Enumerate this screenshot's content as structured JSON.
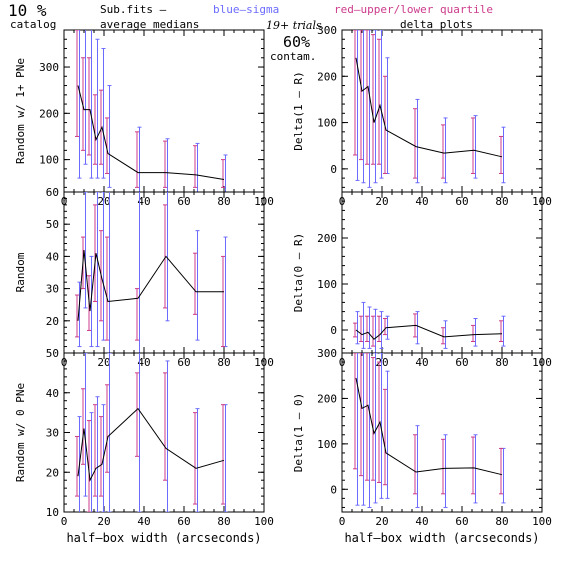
{
  "header": {
    "fraction": "10 %",
    "catalog": "catalog",
    "subfits": "Sub.fits  –",
    "average_medians": "average medians",
    "blue_sigma": "blue–sigma",
    "red_quartile": "red–upper/lower quartile",
    "trials": "19+ trials",
    "contam_pct": "60%",
    "contam_label": "contam.",
    "delta_plots": "delta plots"
  },
  "colors": {
    "line": "#000000",
    "sigma": "#6b6bff",
    "quartile": "#cc3b8c",
    "frame": "#000000"
  },
  "chart_data": [
    {
      "type": "line",
      "ylabel": "Random w/ 1+ PNe",
      "xlabel": "",
      "xlim": [
        0,
        100
      ],
      "ylim": [
        30,
        380
      ],
      "x": [
        7,
        10,
        13,
        16,
        19,
        22,
        37,
        51,
        66,
        80
      ],
      "xticks": [
        "0",
        "20",
        "40",
        "60",
        "80",
        "100"
      ],
      "yticks": [
        "100",
        "200",
        "300"
      ],
      "series": [
        {
          "values": [
            260,
            208,
            208,
            143,
            170,
            113,
            72,
            72,
            67,
            57
          ],
          "sigma": [
            [
              60,
              400
            ],
            [
              90,
              400
            ],
            [
              60,
              400
            ],
            [
              60,
              360
            ],
            [
              60,
              340
            ],
            [
              40,
              260
            ],
            [
              0,
              170
            ],
            [
              0,
              145
            ],
            [
              10,
              135
            ],
            [
              20,
              110
            ]
          ],
          "quartile": [
            [
              150,
              380
            ],
            [
              120,
              320
            ],
            [
              110,
              320
            ],
            [
              90,
              240
            ],
            [
              90,
              250
            ],
            [
              70,
              190
            ],
            [
              40,
              160
            ],
            [
              40,
              140
            ],
            [
              40,
              130
            ],
            [
              40,
              100
            ]
          ]
        }
      ]
    },
    {
      "type": "line",
      "ylabel": "Delta(1 – R)",
      "xlabel": "",
      "xlim": [
        0,
        100
      ],
      "ylim": [
        -50,
        300
      ],
      "x": [
        7,
        10,
        13,
        16,
        19,
        22,
        37,
        51,
        66,
        80
      ],
      "xticks": [
        "0",
        "20",
        "40",
        "60",
        "80",
        "100"
      ],
      "yticks": [
        "0",
        "100",
        "200",
        "300"
      ],
      "series": [
        {
          "values": [
            240,
            168,
            178,
            100,
            137,
            84,
            48,
            34,
            40,
            26
          ],
          "sigma": [
            [
              -25,
              300
            ],
            [
              -30,
              300
            ],
            [
              -40,
              300
            ],
            [
              -30,
              300
            ],
            [
              -20,
              300
            ],
            [
              -10,
              240
            ],
            [
              -30,
              150
            ],
            [
              -30,
              110
            ],
            [
              -20,
              115
            ],
            [
              -30,
              90
            ]
          ],
          "quartile": [
            [
              30,
              300
            ],
            [
              20,
              300
            ],
            [
              10,
              300
            ],
            [
              10,
              290
            ],
            [
              10,
              280
            ],
            [
              -10,
              200
            ],
            [
              -20,
              130
            ],
            [
              -20,
              95
            ],
            [
              -10,
              110
            ],
            [
              -10,
              70
            ]
          ]
        }
      ]
    },
    {
      "type": "line",
      "ylabel": "Random",
      "xlabel": "",
      "xlim": [
        0,
        100
      ],
      "ylim": [
        10,
        60
      ],
      "x": [
        7,
        10,
        13,
        16,
        19,
        22,
        37,
        51,
        66,
        80
      ],
      "xticks": [
        "0",
        "20",
        "40",
        "60",
        "80",
        "100"
      ],
      "yticks": [
        "20",
        "30",
        "40",
        "50",
        "60"
      ],
      "series": [
        {
          "values": [
            20,
            42,
            23,
            41,
            33,
            26,
            27,
            40,
            29,
            29
          ],
          "sigma": [
            [
              12,
              32
            ],
            [
              24,
              60
            ],
            [
              12,
              40
            ],
            [
              12,
              60
            ],
            [
              14,
              60
            ],
            [
              10,
              62
            ],
            [
              10,
              62
            ],
            [
              20,
              62
            ],
            [
              14,
              48
            ],
            [
              12,
              46
            ]
          ],
          "quartile": [
            [
              15,
              28
            ],
            [
              30,
              46
            ],
            [
              17,
              34
            ],
            [
              26,
              56
            ],
            [
              20,
              48
            ],
            [
              14,
              46
            ],
            [
              14,
              30
            ],
            [
              24,
              56
            ],
            [
              22,
              41
            ],
            [
              12,
              40
            ]
          ]
        }
      ]
    },
    {
      "type": "line",
      "ylabel": "Delta(0 – R)",
      "xlabel": "",
      "xlim": [
        0,
        100
      ],
      "ylim": [
        -50,
        300
      ],
      "x": [
        7,
        10,
        13,
        16,
        19,
        22,
        37,
        51,
        66,
        80
      ],
      "xticks": [
        "0",
        "20",
        "40",
        "60",
        "80",
        "100"
      ],
      "yticks": [
        "0",
        "100",
        "200"
      ],
      "series": [
        {
          "values": [
            0,
            -10,
            -5,
            -20,
            -10,
            5,
            10,
            -15,
            -10,
            -8
          ],
          "sigma": [
            [
              -30,
              40
            ],
            [
              -40,
              60
            ],
            [
              -40,
              50
            ],
            [
              -50,
              45
            ],
            [
              -40,
              40
            ],
            [
              -20,
              30
            ],
            [
              -30,
              40
            ],
            [
              -40,
              20
            ],
            [
              -35,
              25
            ],
            [
              -35,
              30
            ]
          ],
          "quartile": [
            [
              -15,
              15
            ],
            [
              -25,
              30
            ],
            [
              -25,
              30
            ],
            [
              -35,
              30
            ],
            [
              -25,
              30
            ],
            [
              -10,
              25
            ],
            [
              -15,
              35
            ],
            [
              -30,
              5
            ],
            [
              -25,
              10
            ],
            [
              -25,
              20
            ]
          ]
        }
      ]
    },
    {
      "type": "line",
      "ylabel": "Random w/ 0 PNe",
      "xlabel": "half–box width (arcseconds)",
      "xlim": [
        0,
        100
      ],
      "ylim": [
        10,
        50
      ],
      "x": [
        7,
        10,
        13,
        16,
        19,
        22,
        37,
        51,
        66,
        80
      ],
      "xticks": [
        "0",
        "20",
        "40",
        "60",
        "80",
        "100"
      ],
      "yticks": [
        "10",
        "20",
        "30",
        "40",
        "50"
      ],
      "series": [
        {
          "values": [
            19,
            31,
            18,
            21,
            22,
            29,
            36,
            26,
            21,
            23
          ],
          "sigma": [
            [
              8,
              34
            ],
            [
              14,
              50
            ],
            [
              8,
              35
            ],
            [
              10,
              39
            ],
            [
              10,
              37
            ],
            [
              10,
              50
            ],
            [
              10,
              52
            ],
            [
              10,
              48
            ],
            [
              10,
              36
            ],
            [
              10,
              37
            ]
          ],
          "quartile": [
            [
              14,
              29
            ],
            [
              22,
              41
            ],
            [
              10,
              33
            ],
            [
              14,
              37
            ],
            [
              14,
              34
            ],
            [
              20,
              42
            ],
            [
              24,
              45
            ],
            [
              18,
              45
            ],
            [
              12,
              35
            ],
            [
              12,
              37
            ]
          ]
        }
      ]
    },
    {
      "type": "line",
      "ylabel": "Delta(1 – 0)",
      "xlabel": "half–box width (arcseconds)",
      "xlim": [
        0,
        100
      ],
      "ylim": [
        -50,
        300
      ],
      "x": [
        7,
        10,
        13,
        16,
        19,
        22,
        37,
        51,
        66,
        80
      ],
      "xticks": [
        "0",
        "20",
        "40",
        "60",
        "80",
        "100"
      ],
      "yticks": [
        "0",
        "100",
        "200",
        "300"
      ],
      "series": [
        {
          "values": [
            245,
            178,
            185,
            123,
            148,
            80,
            38,
            46,
            47,
            32
          ],
          "sigma": [
            [
              -35,
              300
            ],
            [
              -35,
              300
            ],
            [
              -40,
              300
            ],
            [
              -30,
              300
            ],
            [
              -20,
              300
            ],
            [
              -20,
              260
            ],
            [
              -40,
              140
            ],
            [
              -40,
              120
            ],
            [
              -30,
              120
            ],
            [
              -30,
              90
            ]
          ],
          "quartile": [
            [
              45,
              300
            ],
            [
              30,
              300
            ],
            [
              20,
              300
            ],
            [
              20,
              290
            ],
            [
              15,
              280
            ],
            [
              10,
              220
            ],
            [
              -10,
              120
            ],
            [
              -10,
              110
            ],
            [
              -10,
              115
            ],
            [
              -10,
              90
            ]
          ]
        }
      ]
    }
  ]
}
